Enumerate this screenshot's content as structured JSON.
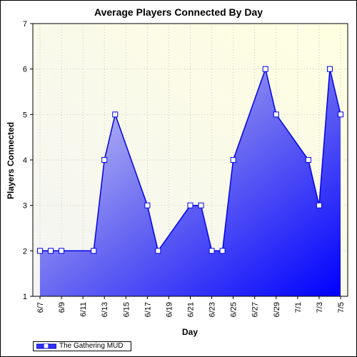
{
  "chart_data": {
    "type": "area",
    "title": "Average Players Connected By Day",
    "xlabel": "Day",
    "ylabel": "Players Connected",
    "ylim": [
      1,
      7
    ],
    "yticks": [
      1,
      2,
      3,
      4,
      5,
      6,
      7
    ],
    "grid": true,
    "legend_position": "bottom-left",
    "x_tick_labels": [
      "6/7",
      "6/9",
      "6/11",
      "6/13",
      "6/15",
      "6/17",
      "6/19",
      "6/21",
      "6/23",
      "6/25",
      "6/27",
      "6/29",
      "7/1",
      "7/3",
      "7/5"
    ],
    "x": [
      "6/7",
      "6/8",
      "6/9",
      "6/12",
      "6/13",
      "6/14",
      "6/17",
      "6/18",
      "6/21",
      "6/22",
      "6/23",
      "6/24",
      "6/25",
      "6/28",
      "6/29",
      "7/2",
      "7/3",
      "7/4",
      "7/5"
    ],
    "series": [
      {
        "name": "The Gathering MUD",
        "values": [
          2,
          2,
          2,
          2,
          4,
          5,
          3,
          2,
          3,
          3,
          2,
          2,
          4,
          6,
          5,
          4,
          3,
          6,
          5
        ],
        "color": "#0000ff"
      }
    ]
  }
}
